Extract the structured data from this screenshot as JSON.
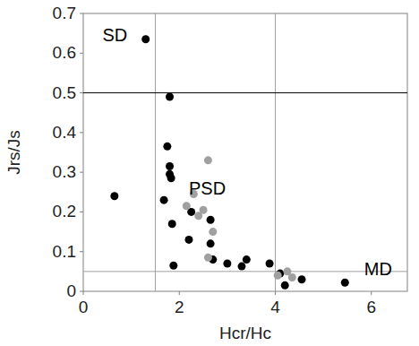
{
  "chart_data": {
    "type": "scatter",
    "x_label": "Hcr/Hc",
    "y_label": "Jrs/Js",
    "xlim": [
      0,
      6.75
    ],
    "ylim": [
      0,
      0.7
    ],
    "xticks": [
      0,
      2,
      4,
      6
    ],
    "yticks": [
      0,
      0.1,
      0.2,
      0.3,
      0.4,
      0.5,
      0.6,
      0.7
    ],
    "grid": false,
    "series": [
      {
        "color": "#000000",
        "marker": "circle",
        "x": [
          1.3,
          1.8,
          0.65,
          1.75,
          1.8,
          1.8,
          1.83,
          1.68,
          1.85,
          1.88,
          2.2,
          2.25,
          2.65,
          2.65,
          2.7,
          3.0,
          3.3,
          3.4,
          3.88,
          4.1,
          4.2,
          4.55,
          5.45
        ],
        "values": [
          0.635,
          0.49,
          0.24,
          0.365,
          0.315,
          0.295,
          0.285,
          0.23,
          0.17,
          0.065,
          0.13,
          0.2,
          0.18,
          0.12,
          0.08,
          0.07,
          0.063,
          0.08,
          0.07,
          0.045,
          0.015,
          0.03,
          0.022
        ]
      },
      {
        "color": "#a0a0a0",
        "marker": "circle",
        "x": [
          2.6,
          2.3,
          2.15,
          2.5,
          2.4,
          2.7,
          2.6,
          4.05,
          4.25,
          4.35
        ],
        "values": [
          0.33,
          0.245,
          0.215,
          0.205,
          0.19,
          0.15,
          0.085,
          0.04,
          0.05,
          0.035
        ]
      }
    ],
    "reference_lines": [
      {
        "axis": "x",
        "value": 1.5,
        "color": "#a0a0a0"
      },
      {
        "axis": "x",
        "value": 4,
        "color": "#a0a0a0"
      },
      {
        "axis": "y",
        "value": 0.5,
        "color": "#000000"
      },
      {
        "axis": "y",
        "value": 0.05,
        "color": "#a0a0a0"
      }
    ],
    "annotations": [
      {
        "text": "SD",
        "x": 0.4,
        "y": 0.63
      },
      {
        "text": "PSD",
        "x": 2.2,
        "y": 0.245
      },
      {
        "text": "MD",
        "x": 5.85,
        "y": 0.04
      }
    ]
  }
}
